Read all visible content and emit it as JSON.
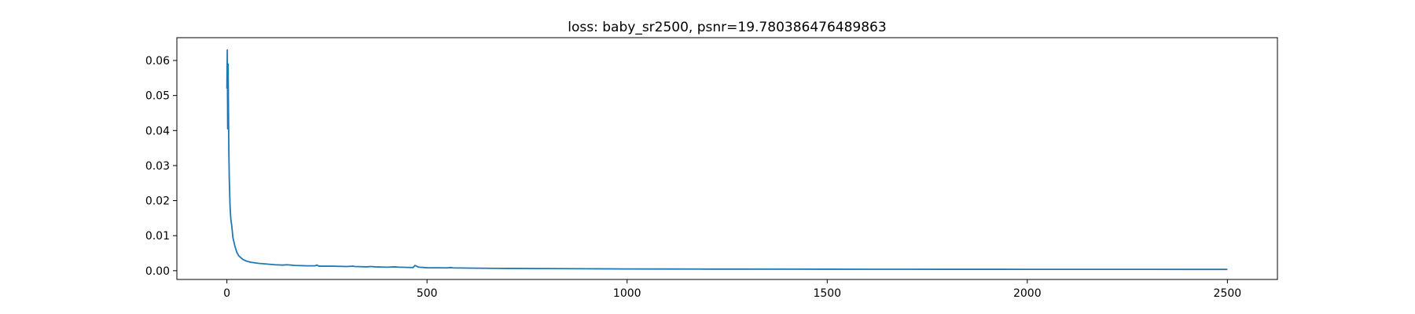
{
  "chart_data": {
    "type": "line",
    "title": "loss: baby_sr2500, psnr=19.780386476489863",
    "xlabel": "",
    "ylabel": "",
    "xlim": [
      -125,
      2625
    ],
    "ylim": [
      -0.0025,
      0.0665
    ],
    "x_ticks": [
      0,
      500,
      1000,
      1500,
      2000,
      2500
    ],
    "y_ticks": [
      0.0,
      0.01,
      0.02,
      0.03,
      0.04,
      0.05,
      0.06
    ],
    "x_tick_labels": [
      "0",
      "500",
      "1000",
      "1500",
      "2000",
      "2500"
    ],
    "y_tick_labels": [
      "0.00",
      "0.01",
      "0.02",
      "0.03",
      "0.04",
      "0.05",
      "0.06"
    ],
    "grid": false,
    "series": [
      {
        "color": "#1f77b4",
        "x": [
          0,
          1,
          2,
          3,
          4,
          5,
          6,
          8,
          10,
          12,
          15,
          20,
          25,
          30,
          40,
          50,
          60,
          80,
          100,
          120,
          140,
          150,
          170,
          200,
          220,
          225,
          230,
          260,
          300,
          315,
          320,
          350,
          360,
          370,
          400,
          420,
          430,
          450,
          465,
          470,
          475,
          480,
          500,
          550,
          560,
          565,
          600,
          650,
          700,
          800,
          900,
          1000,
          1100,
          1200,
          1300,
          1400,
          1500,
          1600,
          1700,
          1800,
          1900,
          2000,
          2100,
          2200,
          2300,
          2400,
          2500
        ],
        "y": [
          0.052,
          0.063,
          0.0405,
          0.059,
          0.045,
          0.033,
          0.026,
          0.018,
          0.0145,
          0.013,
          0.0095,
          0.007,
          0.0052,
          0.0042,
          0.0032,
          0.0027,
          0.0024,
          0.0021,
          0.0019,
          0.0017,
          0.0016,
          0.0017,
          0.0015,
          0.0014,
          0.0014,
          0.0016,
          0.0013,
          0.0013,
          0.0012,
          0.0013,
          0.0012,
          0.0011,
          0.0012,
          0.0011,
          0.001,
          0.0011,
          0.001,
          0.00095,
          0.0009,
          0.0015,
          0.0012,
          0.001,
          0.00085,
          0.0008,
          0.0009,
          0.0008,
          0.00075,
          0.0007,
          0.00065,
          0.0006,
          0.00055,
          0.0005,
          0.00048,
          0.00046,
          0.00045,
          0.00044,
          0.00043,
          0.00042,
          0.00041,
          0.0004,
          0.0004,
          0.00039,
          0.00039,
          0.00038,
          0.00038,
          0.00037,
          0.00037
        ]
      }
    ]
  }
}
